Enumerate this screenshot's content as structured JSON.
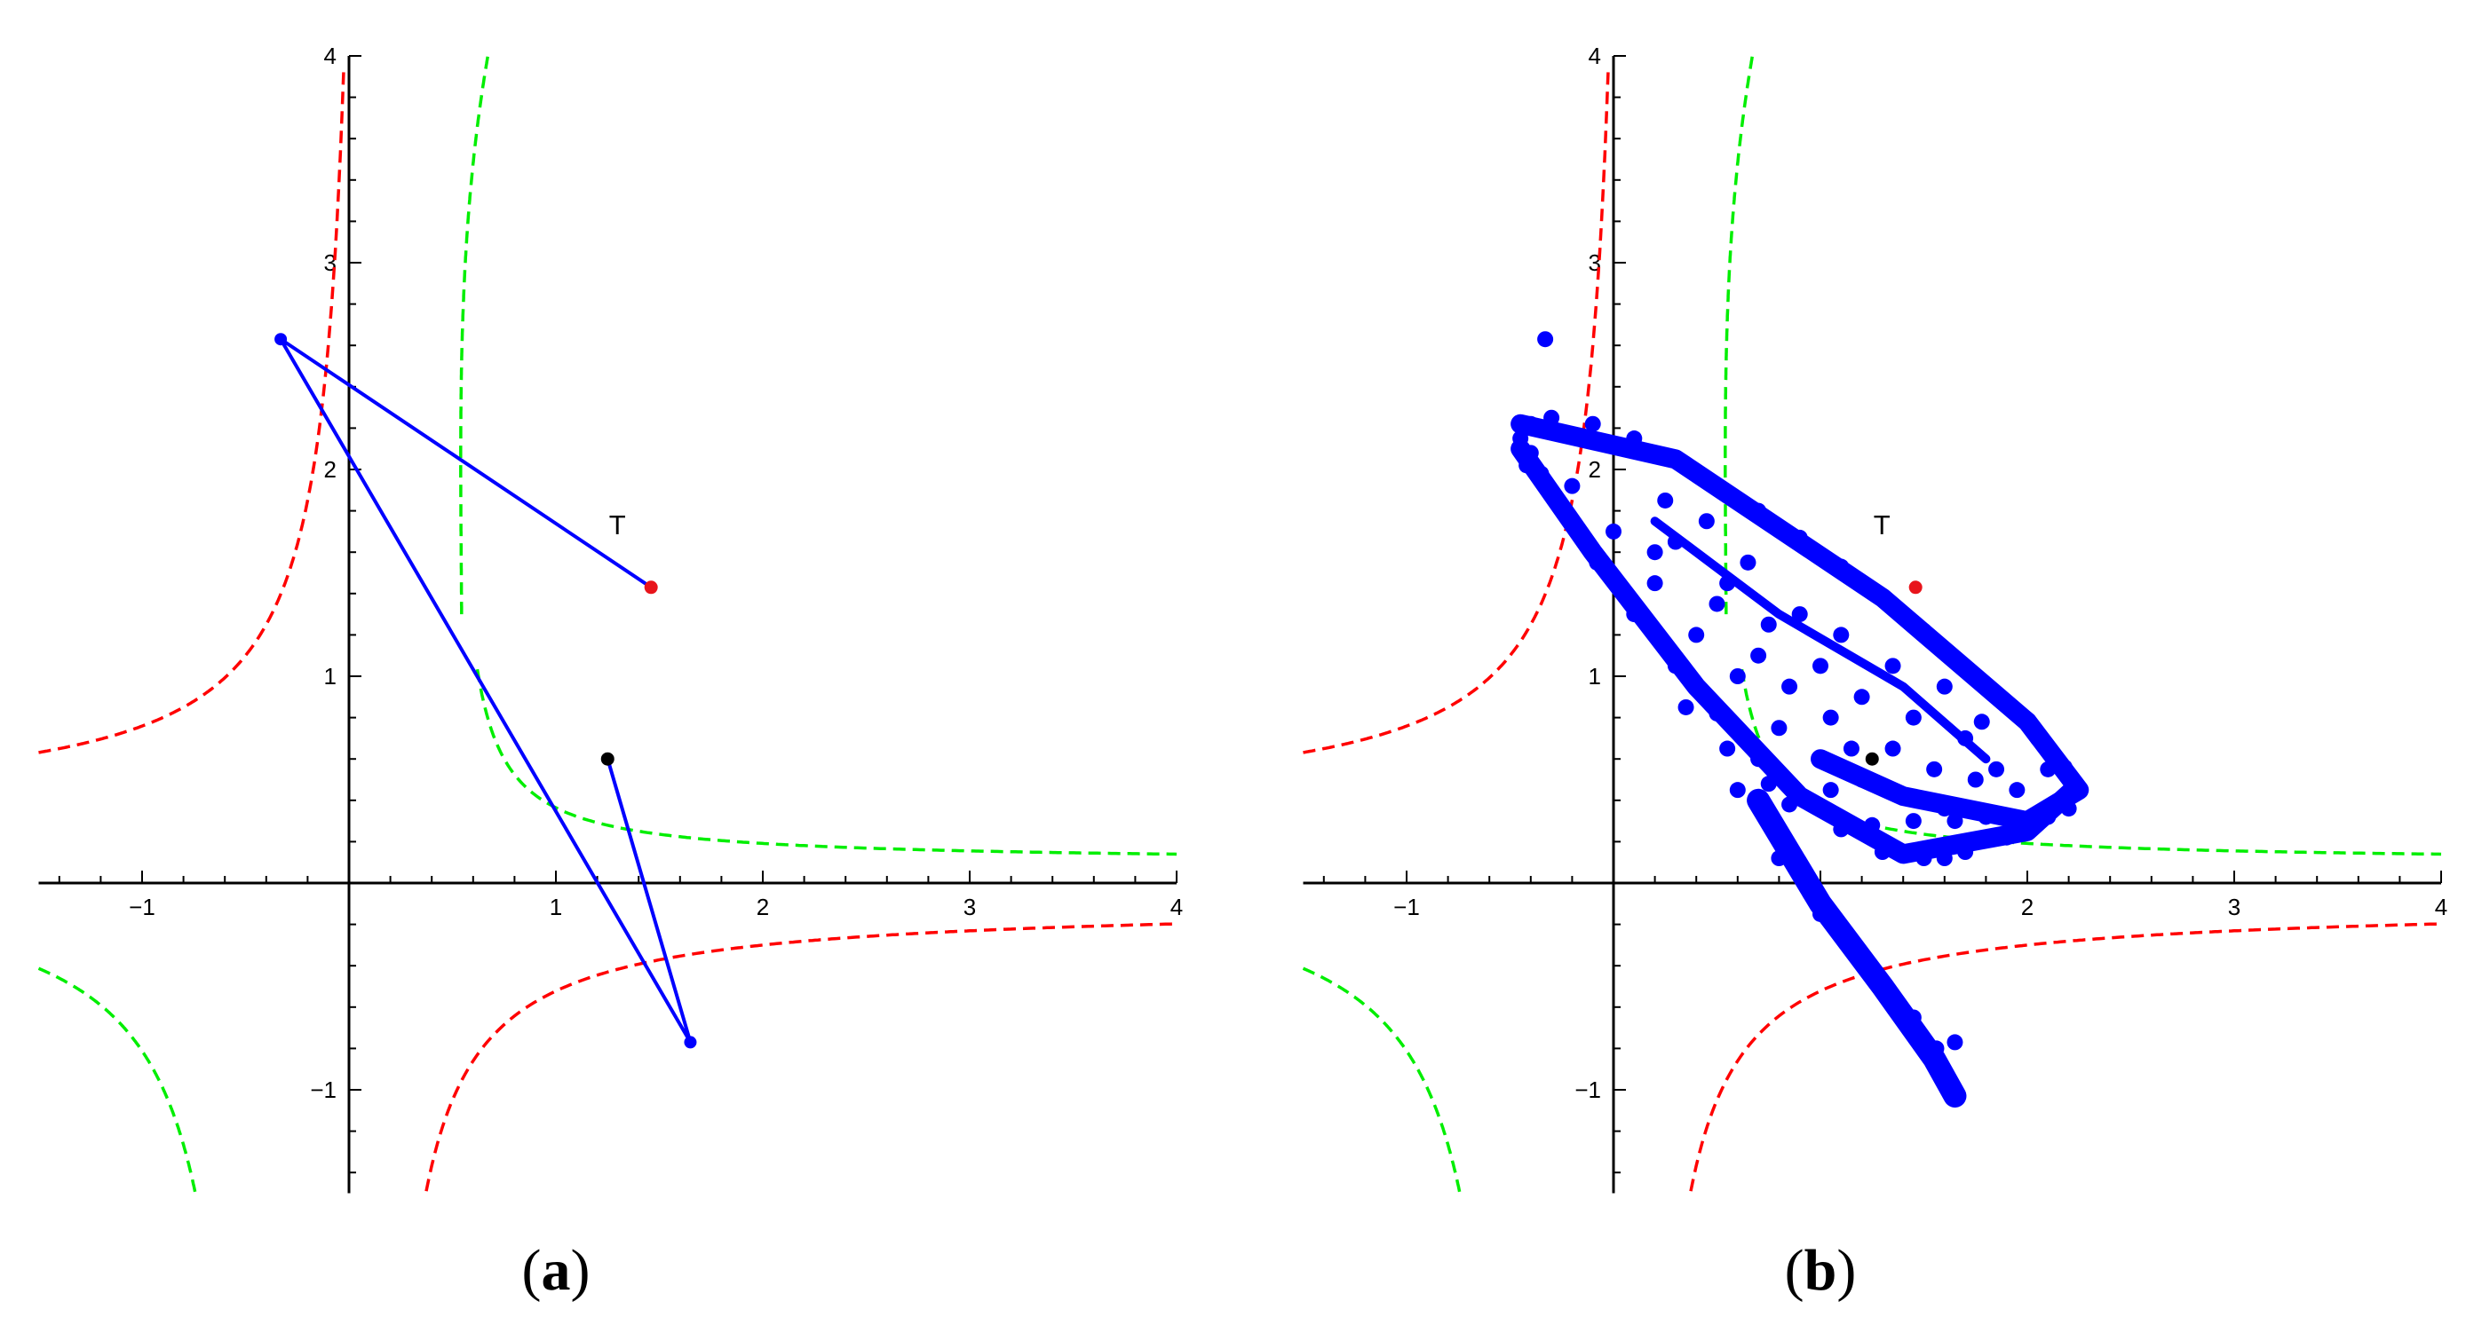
{
  "chart_data": [
    {
      "type": "line",
      "panel_label": {
        "open": "(",
        "letter": "a",
        "close": ")"
      },
      "xlim": [
        -1.5,
        4
      ],
      "ylim": [
        -1.5,
        4
      ],
      "x_ticks": [
        -1,
        1,
        2,
        3,
        4
      ],
      "x_tick_labels": [
        "−1",
        "1",
        "2",
        "3",
        "4"
      ],
      "y_ticks": [
        -1,
        1,
        2,
        3,
        4
      ],
      "y_tick_labels": [
        "−1",
        "1",
        "2",
        "3",
        "4"
      ],
      "grid": false,
      "curves": [
        {
          "color": "#ff0000",
          "style": "dashed",
          "family": "red-hyperbola"
        },
        {
          "color": "#00ee00",
          "style": "dashed",
          "family": "green-hyperbola"
        }
      ],
      "orbit": {
        "color": "#0000ff",
        "style": "line",
        "points": [
          [
            1.46,
            1.43
          ],
          [
            -0.33,
            2.63
          ],
          [
            1.65,
            -0.77
          ],
          [
            1.25,
            0.6
          ]
        ]
      },
      "points": [
        {
          "label": "T",
          "x": 1.46,
          "y": 1.43,
          "color": "#e8141b"
        },
        {
          "label": "",
          "x": 1.25,
          "y": 0.6,
          "color": "#000000"
        }
      ]
    },
    {
      "type": "scatter",
      "panel_label": {
        "open": "(",
        "letter": "b",
        "close": ")"
      },
      "xlim": [
        -1.5,
        4
      ],
      "ylim": [
        -1.5,
        4
      ],
      "x_ticks": [
        -1,
        1,
        2,
        3,
        4
      ],
      "x_tick_labels": [
        "−1",
        "1",
        "2",
        "3",
        "4"
      ],
      "y_ticks": [
        -1,
        1,
        2,
        3,
        4
      ],
      "y_tick_labels": [
        "−1",
        "1",
        "2",
        "3",
        "4"
      ],
      "grid": false,
      "curves": [
        {
          "color": "#ff0000",
          "style": "dashed",
          "family": "red-hyperbola"
        },
        {
          "color": "#00ee00",
          "style": "dashed",
          "family": "green-hyperbola"
        }
      ],
      "scatter_color": "#0000ff",
      "scatter_points": [
        [
          -0.33,
          2.63
        ],
        [
          1.65,
          -0.77
        ],
        [
          -0.4,
          2.22
        ],
        [
          -0.3,
          2.25
        ],
        [
          -0.1,
          2.22
        ],
        [
          0.1,
          2.15
        ],
        [
          0.3,
          2.05
        ],
        [
          0.5,
          1.92
        ],
        [
          0.7,
          1.8
        ],
        [
          0.9,
          1.67
        ],
        [
          1.1,
          1.53
        ],
        [
          1.3,
          1.38
        ],
        [
          1.5,
          1.22
        ],
        [
          1.7,
          1.04
        ],
        [
          1.9,
          0.86
        ],
        [
          2.05,
          0.7
        ],
        [
          2.18,
          0.56
        ],
        [
          2.25,
          0.45
        ],
        [
          2.2,
          0.36
        ],
        [
          2.0,
          0.3
        ],
        [
          1.8,
          0.32
        ],
        [
          1.6,
          0.36
        ],
        [
          1.4,
          0.42
        ],
        [
          1.2,
          0.5
        ],
        [
          1.0,
          0.6
        ],
        [
          0.8,
          0.75
        ],
        [
          0.6,
          1.0
        ],
        [
          0.4,
          1.2
        ],
        [
          0.2,
          1.45
        ],
        [
          0.0,
          1.7
        ],
        [
          -0.2,
          1.92
        ],
        [
          -0.4,
          2.08
        ],
        [
          -0.35,
          1.98
        ],
        [
          -0.22,
          1.78
        ],
        [
          -0.08,
          1.55
        ],
        [
          0.1,
          1.3
        ],
        [
          0.3,
          1.05
        ],
        [
          0.5,
          0.82
        ],
        [
          0.7,
          0.6
        ],
        [
          0.9,
          0.42
        ],
        [
          1.1,
          0.26
        ],
        [
          1.3,
          0.15
        ],
        [
          1.5,
          0.12
        ],
        [
          1.7,
          0.15
        ],
        [
          1.9,
          0.22
        ],
        [
          2.1,
          0.32
        ],
        [
          0.8,
          0.12
        ],
        [
          0.95,
          -0.05
        ],
        [
          1.08,
          -0.2
        ],
        [
          1.2,
          -0.35
        ],
        [
          1.32,
          -0.5
        ],
        [
          1.45,
          -0.65
        ],
        [
          1.56,
          -0.8
        ],
        [
          1.62,
          -0.95
        ],
        [
          1.65,
          -1.03
        ],
        [
          1.0,
          -0.15
        ],
        [
          1.15,
          -0.3
        ],
        [
          1.38,
          -0.6
        ],
        [
          0.3,
          1.65
        ],
        [
          0.55,
          1.45
        ],
        [
          0.75,
          1.25
        ],
        [
          1.0,
          1.05
        ],
        [
          1.2,
          0.9
        ],
        [
          1.45,
          0.8
        ],
        [
          1.7,
          0.7
        ],
        [
          1.85,
          0.55
        ],
        [
          0.45,
          1.75
        ],
        [
          0.25,
          1.85
        ],
        [
          0.65,
          1.55
        ],
        [
          0.9,
          1.3
        ],
        [
          1.1,
          1.2
        ],
        [
          1.35,
          1.05
        ],
        [
          1.6,
          0.95
        ],
        [
          1.78,
          0.78
        ],
        [
          0.2,
          1.6
        ],
        [
          0.5,
          1.35
        ],
        [
          0.7,
          1.1
        ],
        [
          0.85,
          0.95
        ],
        [
          1.05,
          0.8
        ],
        [
          1.15,
          0.65
        ],
        [
          1.35,
          0.65
        ],
        [
          1.55,
          0.55
        ],
        [
          1.75,
          0.5
        ],
        [
          0.6,
          0.45
        ],
        [
          0.85,
          0.38
        ],
        [
          1.05,
          0.45
        ],
        [
          1.25,
          0.28
        ],
        [
          1.45,
          0.3
        ],
        [
          1.65,
          0.3
        ],
        [
          1.95,
          0.45
        ],
        [
          2.1,
          0.55
        ],
        [
          1.6,
          0.12
        ],
        [
          0.35,
          0.85
        ],
        [
          0.55,
          0.65
        ],
        [
          0.75,
          0.48
        ],
        [
          -0.45,
          2.15
        ],
        [
          -0.42,
          2.02
        ]
      ],
      "points": [
        {
          "label": "T",
          "x": 1.46,
          "y": 1.43,
          "color": "#e8141b"
        },
        {
          "label": "",
          "x": 1.25,
          "y": 0.6,
          "color": "#000000"
        }
      ]
    }
  ]
}
